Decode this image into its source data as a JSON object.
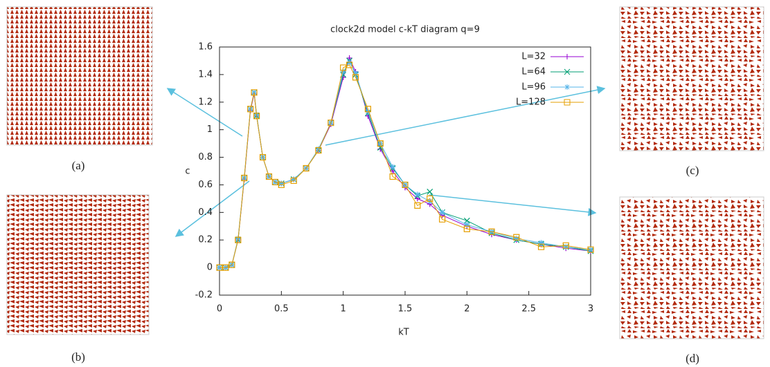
{
  "chart_data": {
    "type": "line",
    "title": "clock2d model c-kT diagram q=9",
    "x_label": "kT",
    "y_label": "c",
    "x": [
      0,
      0.05,
      0.1,
      0.15,
      0.2,
      0.25,
      0.28,
      0.3,
      0.35,
      0.4,
      0.45,
      0.5,
      0.6,
      0.7,
      0.8,
      0.9,
      1.0,
      1.05,
      1.1,
      1.2,
      1.3,
      1.4,
      1.5,
      1.6,
      1.7,
      1.8,
      2.0,
      2.2,
      2.4,
      2.6,
      2.8,
      3.0
    ],
    "series": [
      {
        "name": "L=32",
        "color": "#9400d3",
        "marker": "plus",
        "values": [
          0,
          0,
          0.02,
          0.2,
          0.64,
          1.14,
          1.26,
          1.1,
          0.8,
          0.66,
          0.62,
          0.61,
          0.64,
          0.72,
          0.85,
          1.04,
          1.38,
          1.52,
          1.42,
          1.1,
          0.86,
          0.7,
          0.58,
          0.5,
          0.46,
          0.38,
          0.3,
          0.24,
          0.2,
          0.17,
          0.14,
          0.12
        ]
      },
      {
        "name": "L=64",
        "color": "#009e73",
        "marker": "cross",
        "values": [
          0,
          0,
          0.02,
          0.2,
          0.65,
          1.15,
          1.27,
          1.1,
          0.8,
          0.66,
          0.62,
          0.61,
          0.64,
          0.72,
          0.85,
          1.05,
          1.4,
          1.5,
          1.4,
          1.12,
          0.87,
          0.72,
          0.6,
          0.52,
          0.55,
          0.4,
          0.34,
          0.25,
          0.2,
          0.17,
          0.15,
          0.12
        ]
      },
      {
        "name": "L=96",
        "color": "#56b4e9",
        "marker": "star",
        "values": [
          0,
          0,
          0.02,
          0.21,
          0.65,
          1.15,
          1.27,
          1.11,
          0.8,
          0.66,
          0.62,
          0.61,
          0.64,
          0.72,
          0.86,
          1.05,
          1.42,
          1.49,
          1.41,
          1.13,
          0.9,
          0.73,
          0.6,
          0.53,
          0.48,
          0.4,
          0.31,
          0.26,
          0.21,
          0.18,
          0.15,
          0.13
        ]
      },
      {
        "name": "L=128",
        "color": "#e69f00",
        "marker": "square",
        "values": [
          0,
          0,
          0.02,
          0.2,
          0.65,
          1.15,
          1.27,
          1.1,
          0.8,
          0.66,
          0.62,
          0.6,
          0.63,
          0.72,
          0.85,
          1.05,
          1.45,
          1.47,
          1.38,
          1.15,
          0.9,
          0.66,
          0.6,
          0.45,
          0.5,
          0.35,
          0.28,
          0.26,
          0.22,
          0.15,
          0.16,
          0.13
        ]
      }
    ],
    "xlim": [
      0,
      3
    ],
    "xticks": [
      0,
      0.5,
      1,
      1.5,
      2,
      2.5,
      3
    ],
    "ylim": [
      -0.2,
      1.6
    ],
    "yticks": [
      -0.2,
      0,
      0.2,
      0.4,
      0.6,
      0.8,
      1,
      1.2,
      1.4,
      1.6
    ],
    "grid": false,
    "legend": "top-right"
  },
  "panels": [
    {
      "label": "(a)"
    },
    {
      "label": "(b)"
    },
    {
      "label": "(c)"
    },
    {
      "label": "(d)"
    }
  ]
}
